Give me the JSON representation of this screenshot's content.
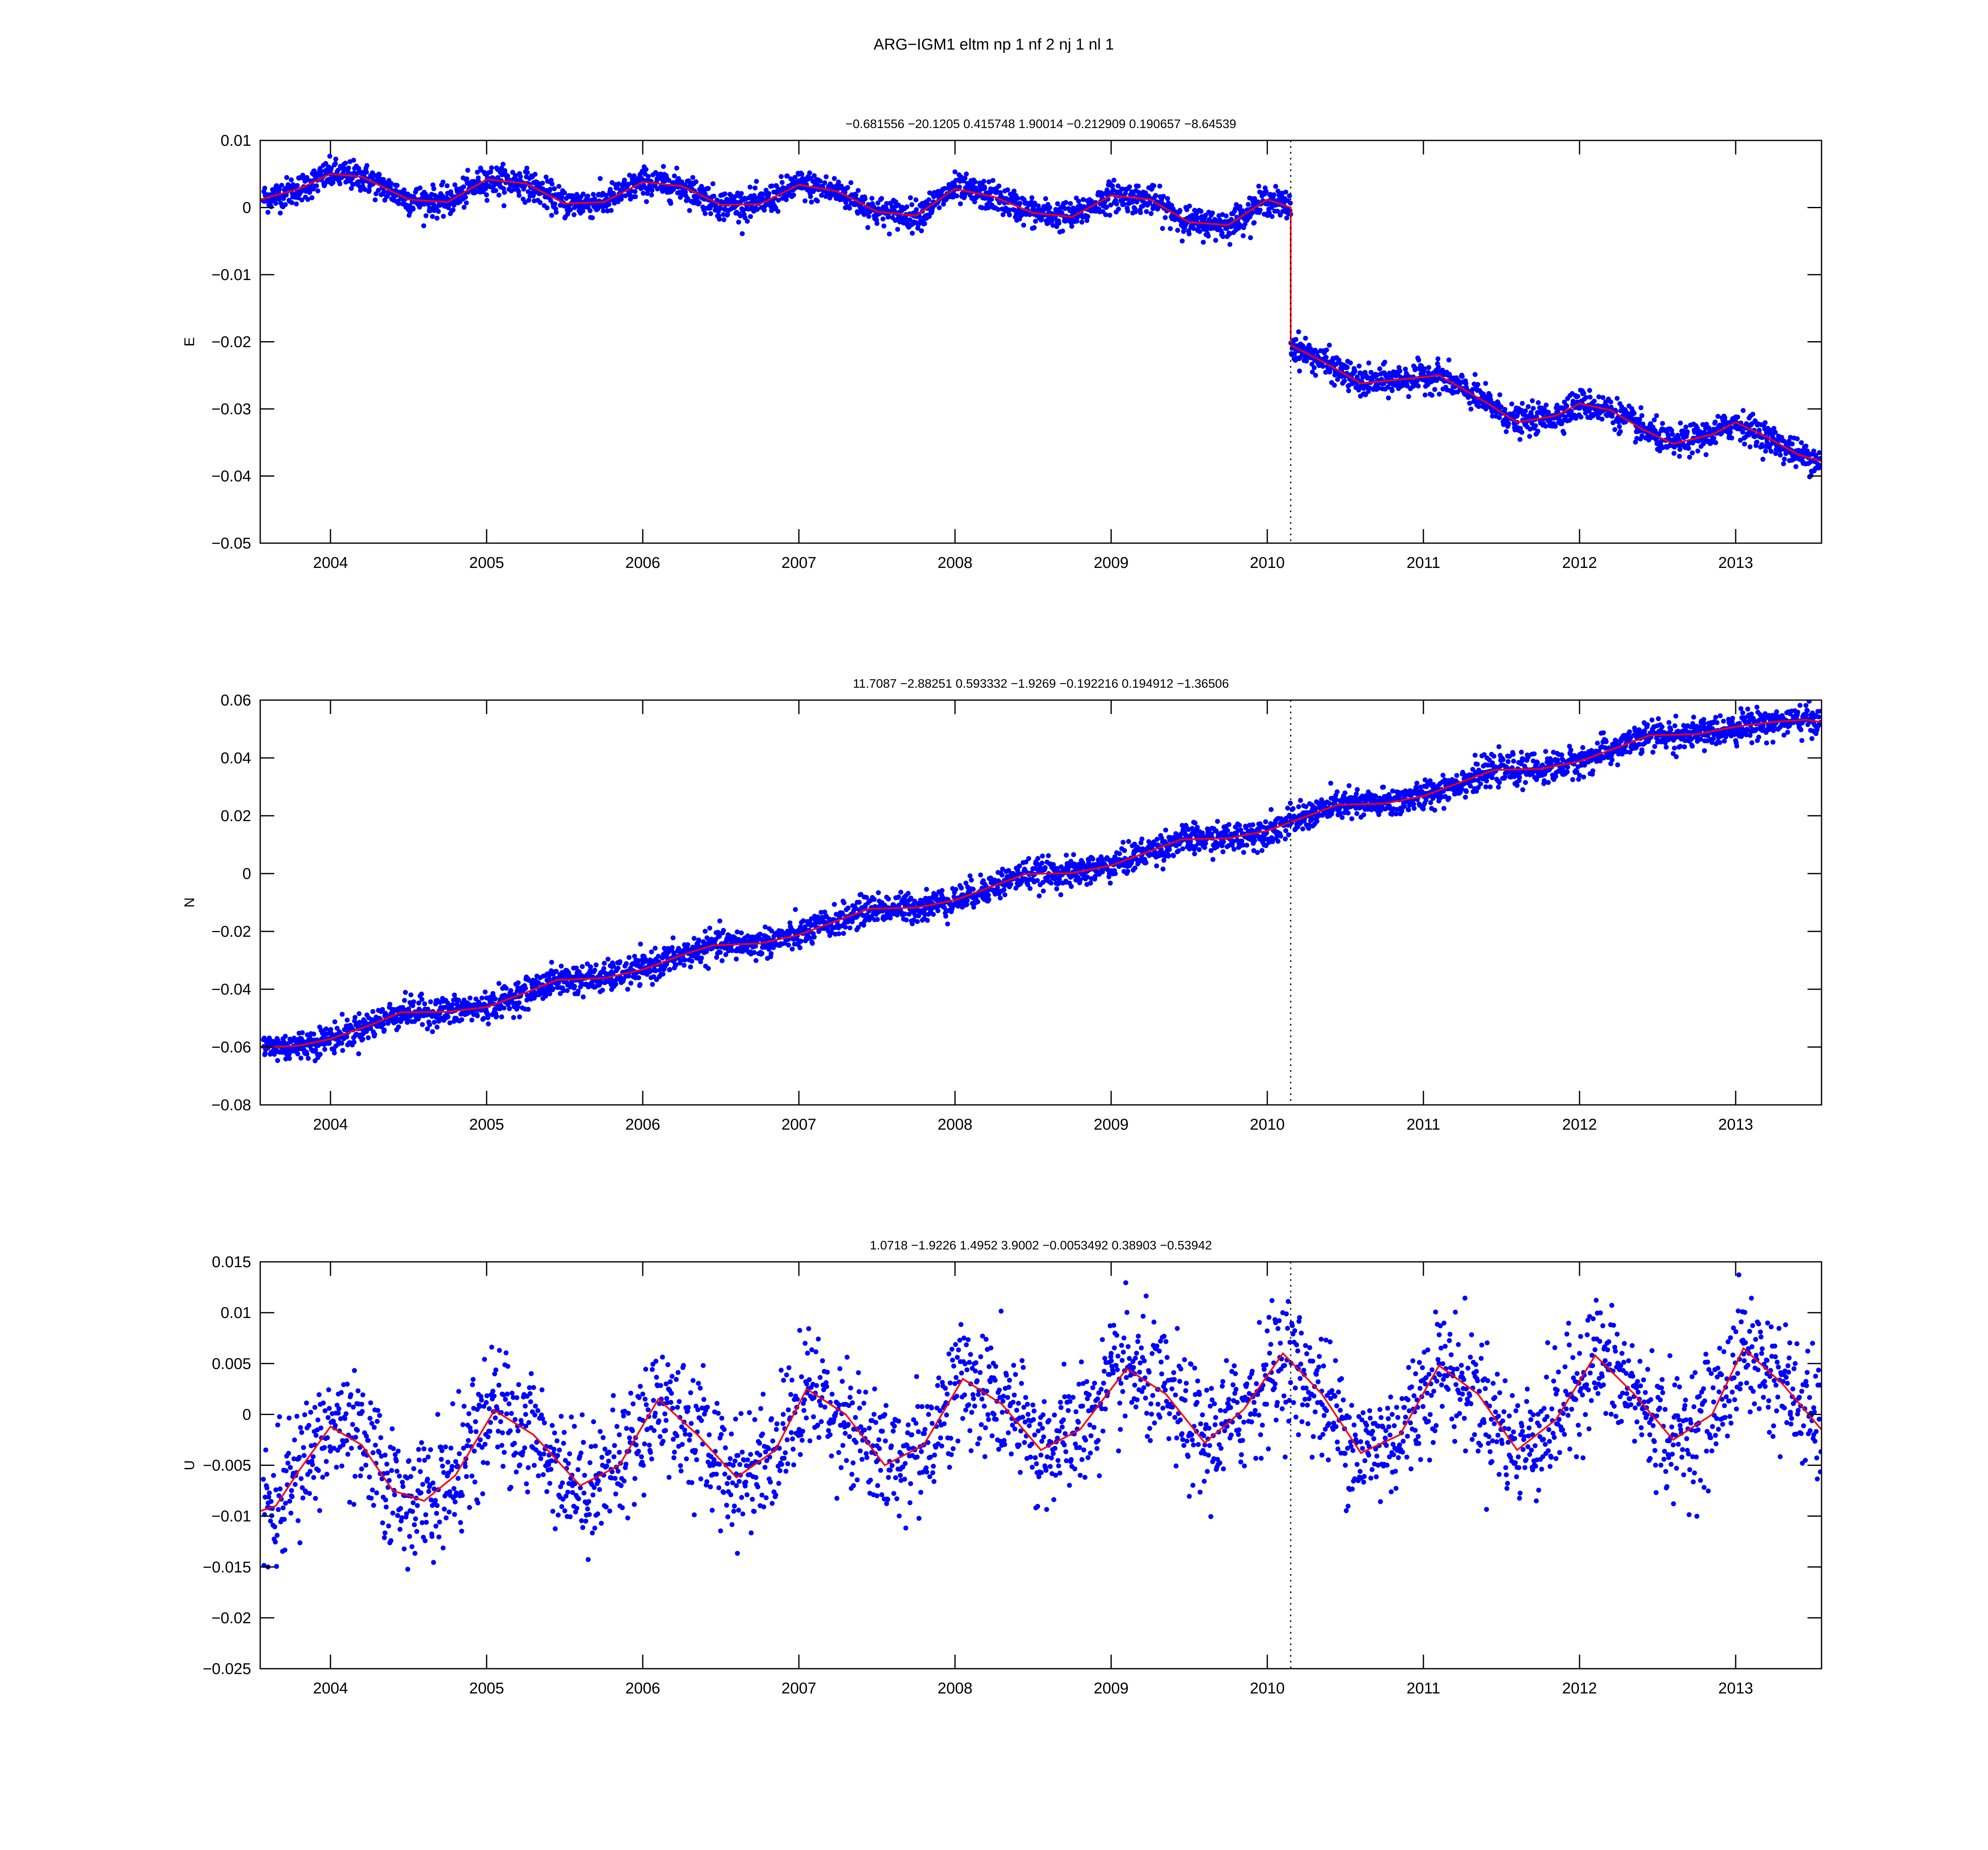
{
  "figure": {
    "title": "ARG−IGM1     eltm  np 1  nf 2  nj 1  nl 1"
  },
  "style": {
    "point_color": "#0000ff",
    "model_color": "#ff0000",
    "marker_line_color": "#000000",
    "axes_color": "#000000",
    "background": "#ffffff"
  },
  "chart_data": [
    {
      "type": "scatter",
      "ylabel": "E",
      "xlabel": "",
      "title": "−0.681556      −20.1205      0.415748      1.90014     −0.212909      0.190657     −8.64539",
      "xlim": [
        2003.55,
        2013.55
      ],
      "ylim": [
        -0.05,
        0.01
      ],
      "xticks": [
        2004,
        2005,
        2006,
        2007,
        2008,
        2009,
        2010,
        2011,
        2012,
        2013
      ],
      "xtick_labels": [
        "2004",
        "2005",
        "2006",
        "2007",
        "2008",
        "2009",
        "2010",
        "2011",
        "2012",
        "2013"
      ],
      "yticks": [
        -0.05,
        -0.04,
        -0.03,
        -0.02,
        -0.01,
        0,
        0.01
      ],
      "ytick_labels": [
        "−0.05",
        "−0.04",
        "−0.03",
        "−0.02",
        "−0.01",
        "0",
        "0.01"
      ],
      "grid": false,
      "series": [
        {
          "kind": "points",
          "x": [
            2003.6,
            2003.8,
            2004.0,
            2004.2,
            2004.4,
            2004.6,
            2004.8,
            2005.0,
            2005.2,
            2005.4,
            2005.6,
            2005.8,
            2006.0,
            2006.2,
            2006.4,
            2006.6,
            2006.8,
            2007.0,
            2007.2,
            2007.4,
            2007.6,
            2007.8,
            2008.0,
            2008.2,
            2008.4,
            2008.6,
            2008.8,
            2009.0,
            2009.2,
            2009.4,
            2009.6,
            2009.8,
            2010.0,
            2010.15,
            2010.2,
            2010.4,
            2010.6,
            2010.8,
            2011.0,
            2011.2,
            2011.4,
            2011.6,
            2011.8,
            2012.0,
            2012.2,
            2012.4,
            2012.6,
            2012.8,
            2013.0,
            2013.2,
            2013.4,
            2013.55
          ],
          "y": [
            0.001,
            0.0025,
            0.005,
            0.0045,
            0.002,
            0.0005,
            0.001,
            0.004,
            0.0035,
            0.0015,
            0.0005,
            0.0015,
            0.004,
            0.0035,
            0.002,
            0.0005,
            0.001,
            0.004,
            0.002,
            0.0,
            -0.0015,
            -0.0015,
            0.003,
            0.0015,
            0.0005,
            -0.0015,
            -0.001,
            0.002,
            0.001,
            -0.0005,
            -0.003,
            -0.002,
            0.0005,
            -0.001,
            -0.0225,
            -0.0245,
            -0.026,
            -0.025,
            -0.0245,
            -0.0275,
            -0.03,
            -0.032,
            -0.0305,
            -0.029,
            -0.031,
            -0.034,
            -0.035,
            -0.0335,
            -0.0325,
            -0.0345,
            -0.037,
            -0.0375
          ]
        },
        {
          "kind": "model",
          "x": [
            2003.55,
            2003.8,
            2004.0,
            2004.2,
            2004.5,
            2004.75,
            2005.0,
            2005.25,
            2005.5,
            2005.75,
            2006.0,
            2006.25,
            2006.5,
            2006.75,
            2007.0,
            2007.25,
            2007.5,
            2007.75,
            2008.0,
            2008.25,
            2008.5,
            2008.75,
            2009.0,
            2009.25,
            2009.5,
            2009.75,
            2010.0,
            2010.15,
            2010.15,
            2010.4,
            2010.6,
            2010.9,
            2011.1,
            2011.4,
            2011.6,
            2011.85,
            2012.0,
            2012.2,
            2012.4,
            2012.6,
            2012.85,
            2013.0,
            2013.2,
            2013.4,
            2013.55
          ],
          "y": [
            0.0012,
            0.0028,
            0.005,
            0.0046,
            0.0012,
            0.0008,
            0.0042,
            0.0036,
            0.0006,
            0.0008,
            0.0038,
            0.0032,
            0.0004,
            0.0005,
            0.0034,
            0.0024,
            -0.0006,
            -0.0012,
            0.0028,
            0.0016,
            -0.0008,
            -0.0014,
            0.0018,
            0.0012,
            -0.0022,
            -0.0026,
            0.0012,
            0.0,
            -0.0205,
            -0.0235,
            -0.0262,
            -0.0255,
            -0.025,
            -0.029,
            -0.032,
            -0.031,
            -0.0292,
            -0.0302,
            -0.033,
            -0.0352,
            -0.0338,
            -0.032,
            -0.0342,
            -0.0368,
            -0.0378
          ]
        }
      ],
      "vertical_marker": {
        "x": 2010.15,
        "style": "dotted"
      }
    },
    {
      "type": "scatter",
      "ylabel": "N",
      "xlabel": "",
      "title": "11.7087      −2.88251      0.593332      −1.9269     −0.192216      0.194912     −1.36506",
      "xlim": [
        2003.55,
        2013.55
      ],
      "ylim": [
        -0.08,
        0.06
      ],
      "xticks": [
        2004,
        2005,
        2006,
        2007,
        2008,
        2009,
        2010,
        2011,
        2012,
        2013
      ],
      "xtick_labels": [
        "2004",
        "2005",
        "2006",
        "2007",
        "2008",
        "2009",
        "2010",
        "2011",
        "2012",
        "2013"
      ],
      "yticks": [
        -0.08,
        -0.06,
        -0.04,
        -0.02,
        0,
        0.02,
        0.04,
        0.06
      ],
      "ytick_labels": [
        "−0.08",
        "−0.06",
        "−0.04",
        "−0.02",
        "0",
        "0.02",
        "0.04",
        "0.06"
      ],
      "grid": false,
      "series": [
        {
          "kind": "points",
          "x": [
            2003.6,
            2003.8,
            2004.0,
            2004.2,
            2004.4,
            2004.6,
            2004.8,
            2005.0,
            2005.2,
            2005.4,
            2005.6,
            2005.8,
            2006.0,
            2006.2,
            2006.4,
            2006.6,
            2006.8,
            2007.0,
            2007.2,
            2007.4,
            2007.6,
            2007.8,
            2008.0,
            2008.2,
            2008.4,
            2008.6,
            2008.8,
            2009.0,
            2009.2,
            2009.4,
            2009.6,
            2009.8,
            2010.0,
            2010.2,
            2010.4,
            2010.6,
            2010.8,
            2011.0,
            2011.2,
            2011.4,
            2011.6,
            2011.8,
            2012.0,
            2012.2,
            2012.4,
            2012.6,
            2012.8,
            2013.0,
            2013.2,
            2013.4,
            2013.55
          ],
          "y": [
            -0.06,
            -0.059,
            -0.057,
            -0.053,
            -0.048,
            -0.0475,
            -0.047,
            -0.043,
            -0.0395,
            -0.0365,
            -0.036,
            -0.034,
            -0.031,
            -0.0275,
            -0.0245,
            -0.024,
            -0.023,
            -0.02,
            -0.016,
            -0.012,
            -0.0115,
            -0.011,
            -0.0085,
            -0.0045,
            -0.0005,
            0.0,
            0.0005,
            0.0035,
            0.008,
            0.0115,
            0.012,
            0.0135,
            0.0155,
            0.0175,
            0.02,
            0.0195,
            0.0205,
            0.0235,
            0.0275,
            0.03,
            0.0305,
            0.0315,
            0.034,
            0.038,
            0.042,
            0.0415,
            0.0425,
            0.046,
            0.0495,
            0.052,
            0.052
          ]
        },
        {
          "kind": "model",
          "x": [
            2003.55,
            2003.8,
            2004.0,
            2004.25,
            2004.45,
            2004.75,
            2005.0,
            2005.25,
            2005.45,
            2005.75,
            2006.0,
            2006.25,
            2006.45,
            2006.75,
            2007.0,
            2007.25,
            2007.45,
            2007.75,
            2008.0,
            2008.25,
            2008.45,
            2008.75,
            2009.0,
            2009.25,
            2009.45,
            2009.75,
            2010.0,
            2010.25,
            2010.45,
            2010.75,
            2011.0,
            2011.25,
            2011.45,
            2011.75,
            2012.0,
            2012.25,
            2012.45,
            2012.75,
            2013.0,
            2013.25,
            2013.45,
            2013.55
          ],
          "y": [
            -0.0602,
            -0.0595,
            -0.0572,
            -0.0525,
            -0.048,
            -0.0478,
            -0.0462,
            -0.0412,
            -0.0368,
            -0.0362,
            -0.0332,
            -0.0282,
            -0.0248,
            -0.0242,
            -0.0212,
            -0.0162,
            -0.0122,
            -0.0118,
            -0.0092,
            -0.0042,
            -0.0002,
            0.0002,
            0.0028,
            0.0078,
            0.0118,
            0.0122,
            0.0148,
            0.0198,
            0.0238,
            0.0242,
            0.0268,
            0.0318,
            0.0358,
            0.0362,
            0.0388,
            0.0438,
            0.0478,
            0.0482,
            0.0508,
            0.0525,
            0.0532,
            0.0524
          ]
        }
      ],
      "vertical_marker": {
        "x": 2010.15,
        "style": "dotted"
      }
    },
    {
      "type": "scatter",
      "ylabel": "U",
      "xlabel": "",
      "title": "1.0718      −1.9226      1.4952      3.9002   −0.0053492      0.38903     −0.53942",
      "xlim": [
        2003.55,
        2013.55
      ],
      "ylim": [
        -0.025,
        0.015
      ],
      "xticks": [
        2004,
        2005,
        2006,
        2007,
        2008,
        2009,
        2010,
        2011,
        2012,
        2013
      ],
      "xtick_labels": [
        "2004",
        "2005",
        "2006",
        "2007",
        "2008",
        "2009",
        "2010",
        "2011",
        "2012",
        "2013"
      ],
      "yticks": [
        -0.025,
        -0.02,
        -0.015,
        -0.01,
        -0.005,
        0,
        0.005,
        0.01,
        0.015
      ],
      "ytick_labels": [
        "−0.025",
        "−0.02",
        "−0.015",
        "−0.01",
        "−0.005",
        "0",
        "0.005",
        "0.01",
        "0.015"
      ],
      "grid": false,
      "series": [
        {
          "kind": "points",
          "x": [
            2003.6,
            2003.75,
            2003.9,
            2004.05,
            2004.2,
            2004.35,
            2004.5,
            2004.65,
            2004.8,
            2004.95,
            2005.1,
            2005.25,
            2005.4,
            2005.55,
            2005.7,
            2005.85,
            2006.0,
            2006.15,
            2006.3,
            2006.45,
            2006.6,
            2006.75,
            2006.9,
            2007.05,
            2007.2,
            2007.35,
            2007.5,
            2007.65,
            2007.8,
            2007.95,
            2008.1,
            2008.25,
            2008.4,
            2008.55,
            2008.7,
            2008.85,
            2009.0,
            2009.15,
            2009.3,
            2009.45,
            2009.6,
            2009.75,
            2009.9,
            2010.05,
            2010.2,
            2010.35,
            2010.5,
            2010.65,
            2010.8,
            2010.95,
            2011.1,
            2011.25,
            2011.4,
            2011.55,
            2011.7,
            2011.85,
            2012.0,
            2012.15,
            2012.3,
            2012.45,
            2012.6,
            2012.75,
            2012.9,
            2013.05,
            2013.2,
            2013.35,
            2013.5
          ],
          "y": [
            -0.015,
            -0.008,
            -0.003,
            0.002,
            0.001,
            -0.004,
            -0.008,
            -0.012,
            -0.008,
            -0.003,
            0.002,
            0.0,
            -0.004,
            -0.007,
            -0.006,
            -0.002,
            0.002,
            0.003,
            -0.002,
            -0.005,
            -0.007,
            -0.004,
            0.0,
            0.003,
            -0.002,
            -0.007,
            -0.008,
            -0.006,
            -0.003,
            0.002,
            0.003,
            0.0,
            -0.003,
            -0.004,
            -0.003,
            0.002,
            0.006,
            0.004,
            0.001,
            -0.002,
            -0.003,
            0.001,
            0.004,
            0.003,
            -0.002,
            -0.004,
            -0.005,
            -0.004,
            0.0,
            0.004,
            0.005,
            0.002,
            -0.002,
            -0.004,
            -0.002,
            0.002,
            0.006,
            0.005,
            0.001,
            -0.002,
            -0.003,
            -0.001,
            0.004,
            0.007,
            0.004,
            0.0,
            -0.002
          ]
        },
        {
          "kind": "model",
          "x": [
            2003.55,
            2003.65,
            2003.8,
            2004.0,
            2004.2,
            2004.4,
            2004.6,
            2004.8,
            2005.05,
            2005.3,
            2005.6,
            2005.85,
            2006.1,
            2006.35,
            2006.6,
            2006.85,
            2007.05,
            2007.3,
            2007.55,
            2007.8,
            2008.05,
            2008.3,
            2008.55,
            2008.8,
            2009.1,
            2009.35,
            2009.6,
            2009.85,
            2010.1,
            2010.35,
            2010.6,
            2010.85,
            2011.1,
            2011.35,
            2011.6,
            2011.85,
            2012.1,
            2012.35,
            2012.6,
            2012.85,
            2013.05,
            2013.3,
            2013.55
          ],
          "y": [
            -0.0095,
            -0.009,
            -0.0055,
            -0.0012,
            -0.003,
            -0.0075,
            -0.0085,
            -0.006,
            0.0004,
            -0.002,
            -0.007,
            -0.005,
            0.0015,
            -0.002,
            -0.0062,
            -0.0035,
            0.0025,
            0.0,
            -0.005,
            -0.003,
            0.0035,
            0.001,
            -0.0035,
            -0.0015,
            0.0045,
            0.002,
            -0.0028,
            0.0005,
            0.006,
            0.002,
            -0.0038,
            -0.002,
            0.0048,
            0.002,
            -0.0035,
            -0.0005,
            0.0058,
            0.002,
            -0.0025,
            0.0,
            0.0065,
            0.003,
            -0.0015
          ]
        }
      ],
      "vertical_marker": {
        "x": 2010.15,
        "style": "dotted"
      }
    }
  ]
}
